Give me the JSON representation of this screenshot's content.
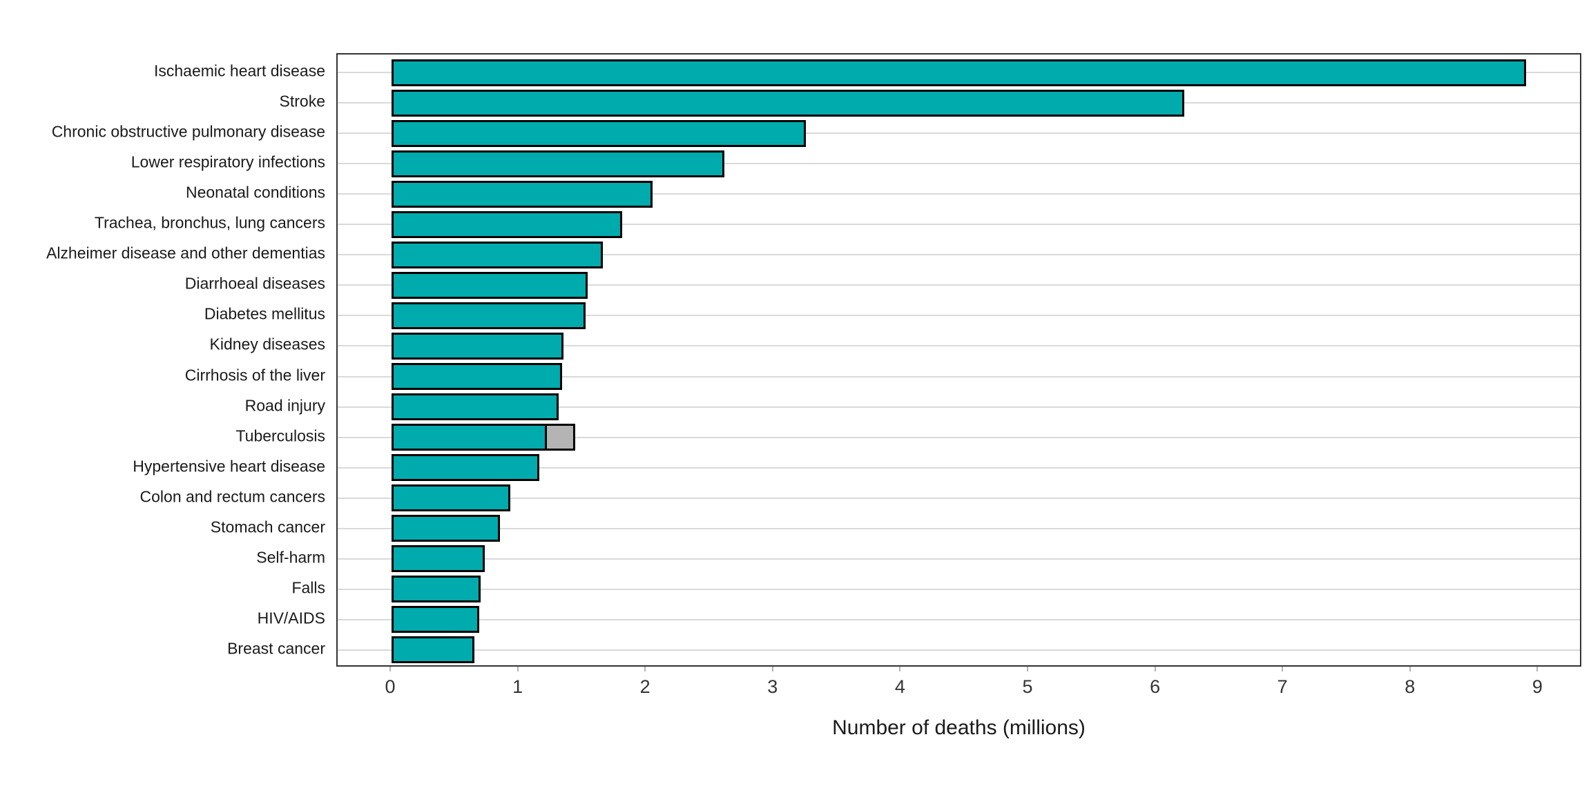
{
  "chart_data": {
    "type": "bar",
    "orientation": "horizontal",
    "title": "",
    "xlabel": "Number of deaths (millions)",
    "ylabel": "",
    "xlim": [
      0,
      9.34
    ],
    "x_ticks": [
      0,
      1,
      2,
      3,
      4,
      5,
      6,
      7,
      8,
      9
    ],
    "grid": "horizontal-major-only",
    "legend": "none",
    "categories": [
      "Ischaemic heart disease",
      "Stroke",
      "Chronic obstructive pulmonary disease",
      "Lower respiratory infections",
      "Neonatal conditions",
      "Trachea, bronchus, lung cancers",
      "Alzheimer disease and other dementias",
      "Diarrhoeal diseases",
      "Diabetes mellitus",
      "Kidney diseases",
      "Cirrhosis of the liver",
      "Road injury",
      "Tuberculosis",
      "Hypertensive heart disease",
      "Colon and rectum cancers",
      "Stomach cancer",
      "Self-harm",
      "Falls",
      "HIV/AIDS",
      "Breast cancer"
    ],
    "values": [
      8.9,
      6.22,
      3.25,
      2.61,
      2.05,
      1.81,
      1.66,
      1.54,
      1.52,
      1.35,
      1.34,
      1.31,
      1.22,
      1.16,
      0.93,
      0.85,
      0.73,
      0.7,
      0.69,
      0.65
    ],
    "extra_segments": [
      {
        "category": "Tuberculosis",
        "category_index": 12,
        "from": 1.22,
        "to": 1.44,
        "fill": "#B4B4B4"
      }
    ],
    "colors": {
      "bar_fill": "#00ABAD",
      "bar_border": "#000000",
      "extra_segment_fill": "#B4B4B4",
      "gridline": "#D9D9D9",
      "panel_border": "#333333",
      "tick_mark": "#B3B3B3",
      "tick_text": "#333333",
      "label_text": "#1A1A1A",
      "axis_title_text": "#1A1A1A",
      "background": "#FFFFFF"
    }
  }
}
